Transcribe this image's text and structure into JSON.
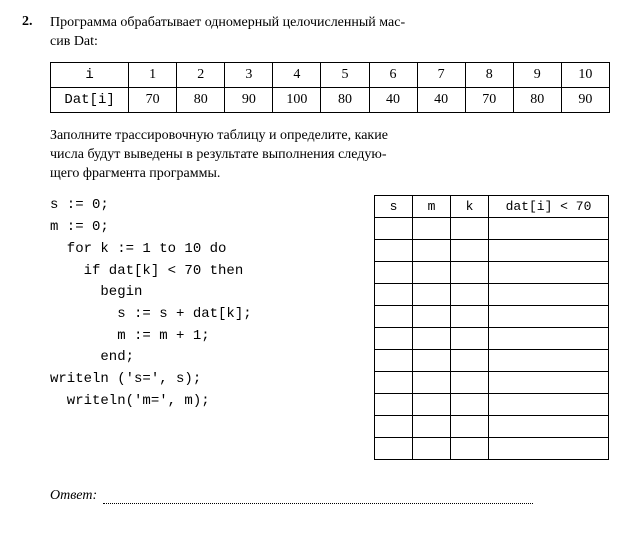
{
  "problem": {
    "number": "2.",
    "statement1": "Программа обрабатывает одномерный целочисленный мас-",
    "statement2": "сив Dat:"
  },
  "datTable": {
    "row1Header": "i",
    "row2Header": "Dat[i]",
    "indices": [
      "1",
      "2",
      "3",
      "4",
      "5",
      "6",
      "7",
      "8",
      "9",
      "10"
    ],
    "values": [
      "70",
      "80",
      "90",
      "100",
      "80",
      "40",
      "40",
      "70",
      "80",
      "90"
    ]
  },
  "instruction": {
    "l1": "Заполните трассировочную таблицу и определите, какие",
    "l2": "числа будут выведены в результате выполнения следую-",
    "l3": "щего фрагмента программы."
  },
  "code": {
    "l1": "s := 0;",
    "l2": "m := 0;",
    "l3": "  for k := 1 to 10 do",
    "l4": "    if dat[k] < 70 then",
    "l5": "      begin",
    "l6": "        s := s + dat[k];",
    "l7": "        m := m + 1;",
    "l8": "      end;",
    "l9": "writeln ('s=', s);",
    "l10": "  writeln('m=', m);"
  },
  "traceHeaders": {
    "s": "s",
    "m": "m",
    "k": "k",
    "d": "dat[i] < 70"
  },
  "traceRows": 11,
  "answerLabel": "Ответ:"
}
